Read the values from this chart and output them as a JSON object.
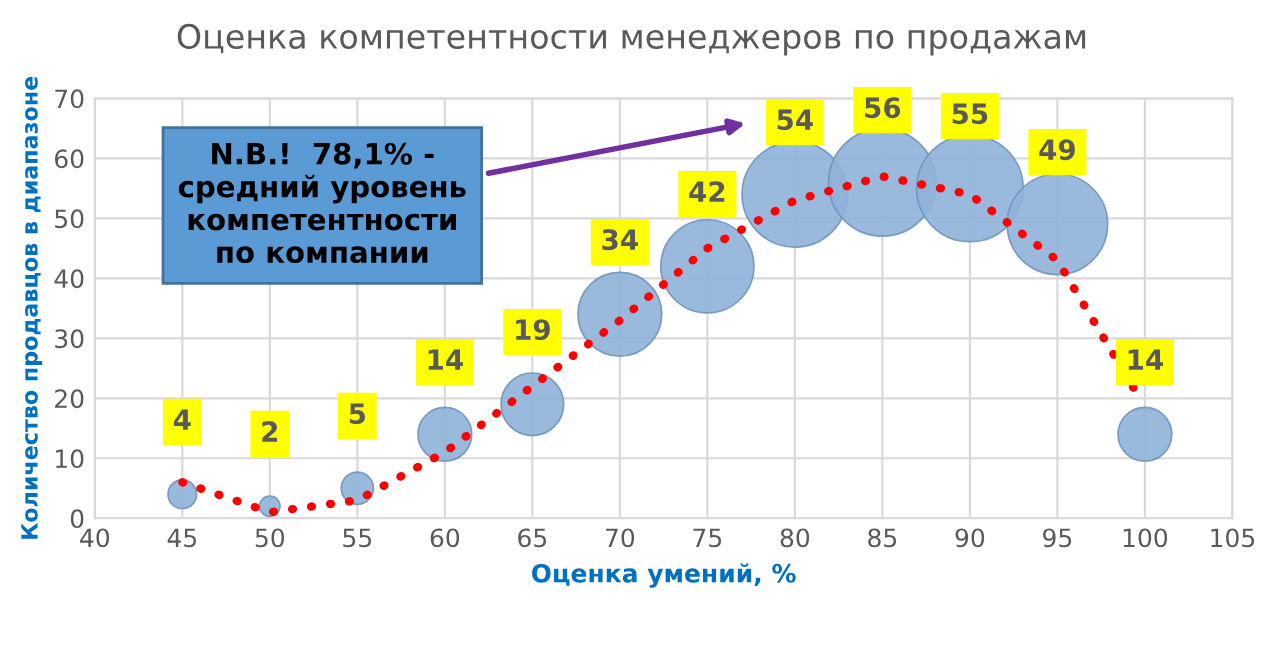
{
  "chart_data": {
    "type": "bubble",
    "title": "Оценка компетентности менеджеров по продажам",
    "xlabel": "Оценка умений, %",
    "ylabel": "Количество продавцов в диапазоне",
    "annotations": [
      "N.B.!  78,1% -\nсредний уровень\nкомпетентности\nпо компании"
    ],
    "x": [
      45,
      50,
      55,
      60,
      65,
      70,
      75,
      80,
      85,
      90,
      95,
      100
    ],
    "series": [
      {
        "color": "#8fb3d9",
        "values": [
          4,
          2,
          5,
          14,
          19,
          34,
          42,
          54,
          56,
          55,
          49,
          14
        ],
        "value_labels": [
          "4",
          "2",
          "5",
          "14",
          "19",
          "34",
          "42",
          "54",
          "56",
          "55",
          "49",
          "14"
        ],
        "sizes": [
          0.071,
          0.036,
          0.089,
          0.25,
          0.339,
          0.607,
          0.75,
          0.964,
          1,
          0.982,
          0.875,
          0.25
        ]
      },
      {
        "type": "line",
        "color": "#ff0000",
        "line_style": "dotted",
        "x": [
          45,
          50,
          55,
          60,
          65,
          70,
          75,
          80,
          85,
          90,
          95,
          99.5
        ],
        "values": [
          6,
          1,
          3,
          11,
          22,
          33,
          45,
          53,
          57,
          54,
          43,
          21
        ]
      }
    ],
    "xlim": [
      40,
      105
    ],
    "xticks": [
      40,
      45,
      50,
      55,
      60,
      65,
      70,
      75,
      80,
      85,
      90,
      95,
      100,
      105
    ],
    "ylim": [
      0,
      70
    ],
    "yticks": [
      0,
      10,
      20,
      30,
      40,
      50,
      60,
      70
    ],
    "grid": true,
    "legend": false
  }
}
